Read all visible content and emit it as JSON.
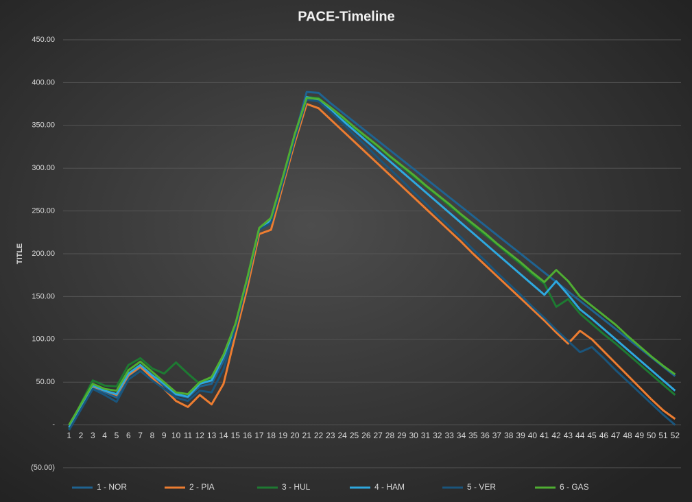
{
  "chart_data": {
    "type": "line",
    "title": "PACE-Timeline",
    "y_label": "TITLE",
    "x": [
      1,
      2,
      3,
      4,
      5,
      6,
      7,
      8,
      9,
      10,
      11,
      12,
      13,
      14,
      15,
      16,
      17,
      18,
      19,
      20,
      21,
      22,
      23,
      24,
      25,
      26,
      27,
      28,
      29,
      30,
      31,
      32,
      33,
      34,
      35,
      36,
      37,
      38,
      39,
      40,
      41,
      42,
      43,
      44,
      45,
      46,
      47,
      48,
      49,
      50,
      51,
      52
    ],
    "ylim": [
      -50,
      450
    ],
    "yticks": [
      {
        "value": -50,
        "label": "(50.00)"
      },
      {
        "value": 0,
        "label": "-"
      },
      {
        "value": 50,
        "label": "50.00"
      },
      {
        "value": 100,
        "label": "100.00"
      },
      {
        "value": 150,
        "label": "150.00"
      },
      {
        "value": 200,
        "label": "200.00"
      },
      {
        "value": 250,
        "label": "250.00"
      },
      {
        "value": 300,
        "label": "300.00"
      },
      {
        "value": 350,
        "label": "350.00"
      },
      {
        "value": 400,
        "label": "400.00"
      },
      {
        "value": 450,
        "label": "450.00"
      }
    ],
    "grid": true,
    "legend": "bottom",
    "series": [
      {
        "name": "1 - NOR",
        "color": "#1f6391",
        "values": [
          -5,
          20,
          44,
          38,
          32,
          57,
          67,
          56,
          46,
          35,
          32,
          45,
          48,
          75,
          115,
          170,
          228,
          238,
          288,
          338,
          389,
          388,
          376,
          365,
          354,
          343,
          332,
          321,
          310,
          299,
          288,
          277,
          266,
          255,
          244,
          233,
          222,
          211,
          200,
          189,
          178,
          167,
          156,
          145,
          134,
          123,
          112,
          101,
          90,
          79,
          68,
          57
        ]
      },
      {
        "name": "2 - PIA",
        "color": "#ed7d31",
        "values": [
          -3,
          20,
          45,
          40,
          35,
          58,
          68,
          55,
          42,
          28,
          21,
          35,
          24,
          48,
          105,
          160,
          223,
          228,
          280,
          330,
          375,
          370,
          357,
          344,
          331,
          318,
          305,
          292,
          279,
          266,
          253,
          240,
          227,
          214,
          200,
          187,
          174,
          161,
          148,
          135,
          122,
          108,
          95,
          110,
          100,
          86,
          72,
          58,
          44,
          30,
          17,
          7
        ]
      },
      {
        "name": "3 - HUL",
        "color": "#1e7a32",
        "values": [
          -5,
          25,
          52,
          46,
          45,
          70,
          78,
          66,
          60,
          73,
          60,
          48,
          55,
          80,
          115,
          170,
          228,
          240,
          288,
          338,
          383,
          382,
          370,
          359,
          347,
          336,
          325,
          313,
          302,
          290,
          279,
          268,
          256,
          245,
          233,
          222,
          211,
          199,
          188,
          176,
          165,
          138,
          147,
          130,
          118,
          106,
          95,
          83,
          71,
          59,
          47,
          35
        ]
      },
      {
        "name": "4 - HAM",
        "color": "#2ea8df",
        "values": [
          -3,
          22,
          46,
          40,
          36,
          60,
          70,
          58,
          48,
          36,
          33,
          48,
          52,
          80,
          115,
          168,
          228,
          240,
          287,
          337,
          383,
          380,
          368,
          356,
          344,
          332,
          320,
          308,
          296,
          284,
          272,
          260,
          248,
          236,
          224,
          212,
          200,
          188,
          176,
          164,
          152,
          168,
          152,
          135,
          124,
          112,
          100,
          88,
          76,
          64,
          52,
          40
        ]
      },
      {
        "name": "5 - VER",
        "color": "#1a557c",
        "values": [
          -6,
          18,
          42,
          35,
          27,
          53,
          63,
          52,
          42,
          32,
          28,
          40,
          38,
          65,
          112,
          168,
          228,
          236,
          284,
          334,
          380,
          378,
          366,
          353,
          339,
          326,
          312,
          299,
          286,
          272,
          259,
          245,
          232,
          219,
          205,
          192,
          178,
          165,
          152,
          138,
          125,
          111,
          98,
          85,
          91,
          78,
          64,
          51,
          38,
          25,
          12,
          0
        ]
      },
      {
        "name": "6 - GAS",
        "color": "#4fae32",
        "values": [
          0,
          24,
          48,
          42,
          40,
          64,
          74,
          62,
          50,
          38,
          36,
          50,
          56,
          82,
          118,
          172,
          230,
          242,
          290,
          340,
          382,
          381,
          371,
          360,
          348,
          337,
          326,
          314,
          303,
          292,
          280,
          269,
          258,
          246,
          235,
          224,
          212,
          201,
          190,
          178,
          167,
          181,
          168,
          150,
          139,
          128,
          117,
          104,
          92,
          80,
          69,
          59
        ]
      }
    ]
  }
}
